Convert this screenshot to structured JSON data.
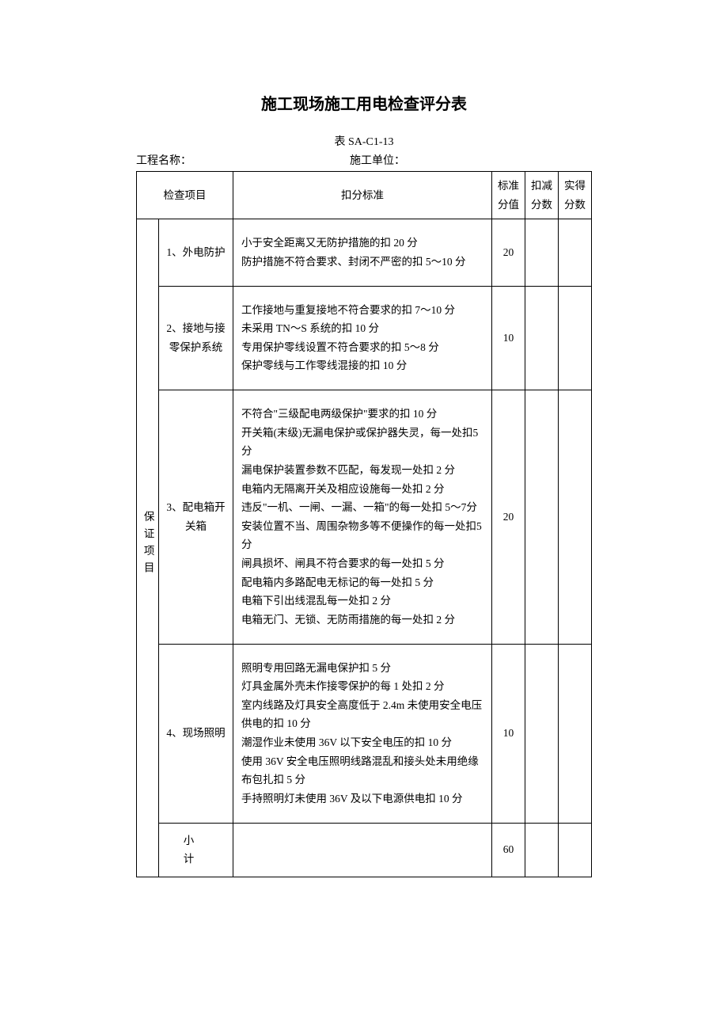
{
  "title": "施工现场施工用电检查评分表",
  "table_code": "表 SA-C1-13",
  "meta": {
    "project_label": "工程名称：",
    "unit_label": "施工单位："
  },
  "headers": {
    "check_item": "检查项目",
    "criteria": "扣分标准",
    "std_score": "标准分值",
    "deduct": "扣减分数",
    "actual": "实得分数"
  },
  "category": "保证项目",
  "rows": [
    {
      "item": "1、外电防护",
      "criteria": "小于安全距离又无防护措施的扣 20 分\n防护措施不符合要求、封闭不严密的扣 5～10 分",
      "std": "20",
      "deduct": "",
      "actual": ""
    },
    {
      "item": "2、接地与接零保护系统",
      "criteria": "工作接地与重复接地不符合要求的扣 7～10 分\n未采用 TN～S 系统的扣 10 分\n专用保护零线设置不符合要求的扣 5～8 分\n保护零线与工作零线混接的扣 10 分",
      "std": "10",
      "deduct": "",
      "actual": ""
    },
    {
      "item": "3、配电箱开关箱",
      "criteria": "不符合\"三级配电两级保护\"要求的扣 10 分\n开关箱(末级)无漏电保护或保护器失灵，每一处扣5 分\n漏电保护装置参数不匹配，每发现一处扣 2 分\n电箱内无隔离开关及相应设施每一处扣 2 分\n违反\"一机、一闸、一漏、一箱\"的每一处扣 5～7分\n安装位置不当、周围杂物多等不便操作的每一处扣5 分\n闸具损坏、闸具不符合要求的每一处扣 5 分\n配电箱内多路配电无标记的每一处扣 5 分\n电箱下引出线混乱每一处扣 2 分\n电箱无门、无锁、无防雨措施的每一处扣 2 分",
      "std": "20",
      "deduct": "",
      "actual": ""
    },
    {
      "item": "4、现场照明",
      "criteria": "照明专用回路无漏电保护扣 5 分\n灯具金属外壳未作接零保护的每 1 处扣 2 分\n室内线路及灯具安全高度低于 2.4m 未使用安全电压供电的扣 10 分\n潮湿作业未使用 36V 以下安全电压的扣 10 分\n使用 36V 安全电压照明线路混乱和接头处未用绝缘布包扎扣 5 分\n手持照明灯未使用 36V 及以下电源供电扣 10 分",
      "std": "10",
      "deduct": "",
      "actual": ""
    }
  ],
  "subtotal": {
    "label": "小   计",
    "std": "60",
    "deduct": "",
    "actual": ""
  },
  "style": {
    "background_color": "#ffffff",
    "border_color": "#000000",
    "title_fontsize": 20,
    "body_fontsize": 13.5,
    "subtitle_fontsize": 14,
    "line_height": 1.75
  }
}
